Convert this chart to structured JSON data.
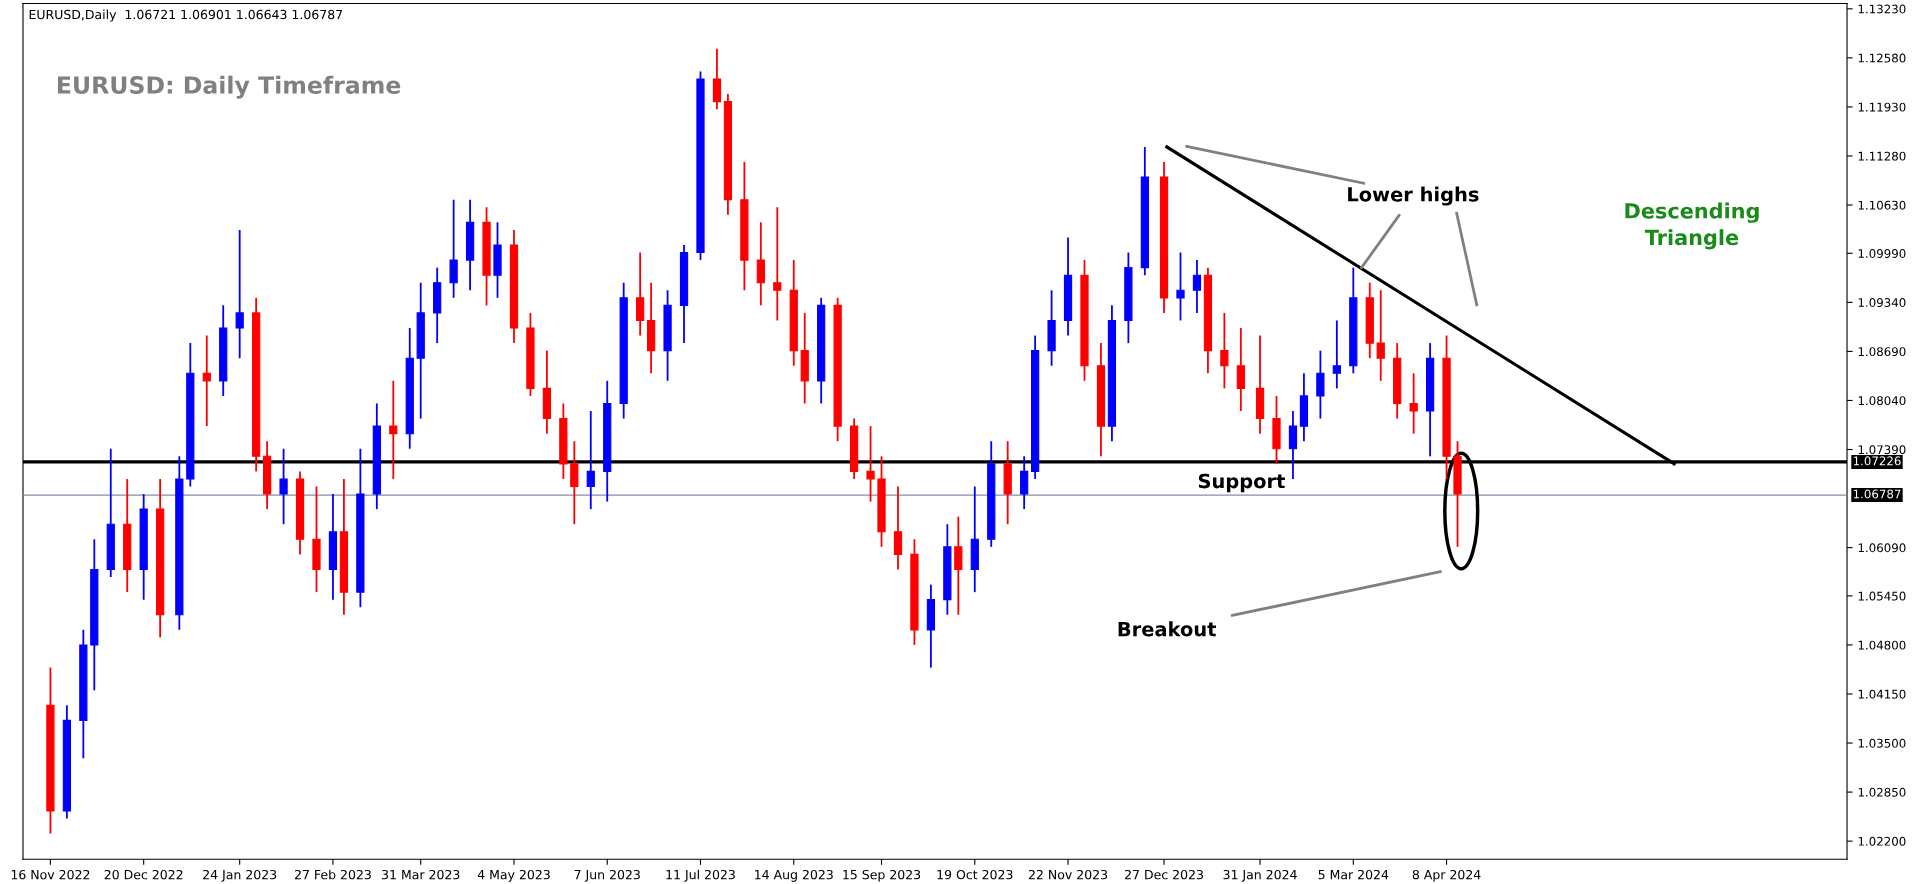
{
  "chart_data": {
    "type": "candlestick",
    "title": "EURUSD: Daily Timeframe",
    "annotations": [
      "EURUSD,Daily  1.06721 1.06901 1.06643 1.06787",
      {
        "text": "Lower highs",
        "x": "2024-03-08",
        "y": 1.098
      },
      "Descending\nTriangle",
      "Support",
      "Breakout"
    ],
    "x": [
      "2022-11-16",
      "2022-11-22",
      "2022-11-28",
      "2022-12-02",
      "2022-12-08",
      "2022-12-14",
      "2022-12-20",
      "2022-12-26",
      "2023-01-02",
      "2023-01-06",
      "2023-01-12",
      "2023-01-18",
      "2023-01-24",
      "2023-01-30",
      "2023-02-03",
      "2023-02-09",
      "2023-02-15",
      "2023-02-21",
      "2023-02-27",
      "2023-03-03",
      "2023-03-09",
      "2023-03-15",
      "2023-03-21",
      "2023-03-27",
      "2023-03-31",
      "2023-04-06",
      "2023-04-12",
      "2023-04-18",
      "2023-04-24",
      "2023-04-28",
      "2023-05-04",
      "2023-05-10",
      "2023-05-16",
      "2023-05-22",
      "2023-05-26",
      "2023-06-01",
      "2023-06-07",
      "2023-06-13",
      "2023-06-19",
      "2023-06-23",
      "2023-06-29",
      "2023-07-05",
      "2023-07-11",
      "2023-07-17",
      "2023-07-21",
      "2023-07-27",
      "2023-08-02",
      "2023-08-08",
      "2023-08-14",
      "2023-08-18",
      "2023-08-24",
      "2023-08-30",
      "2023-09-05",
      "2023-09-11",
      "2023-09-15",
      "2023-09-21",
      "2023-09-27",
      "2023-10-03",
      "2023-10-09",
      "2023-10-13",
      "2023-10-19",
      "2023-10-25",
      "2023-10-31",
      "2023-11-06",
      "2023-11-10",
      "2023-11-16",
      "2023-11-22",
      "2023-11-28",
      "2023-12-04",
      "2023-12-08",
      "2023-12-14",
      "2023-12-20",
      "2023-12-27",
      "2024-01-02",
      "2024-01-08",
      "2024-01-12",
      "2024-01-18",
      "2024-01-24",
      "2024-01-31",
      "2024-02-06",
      "2024-02-12",
      "2024-02-16",
      "2024-02-22",
      "2024-02-28",
      "2024-03-05",
      "2024-03-11",
      "2024-03-15",
      "2024-03-21",
      "2024-03-27",
      "2024-04-02",
      "2024-04-08",
      "2024-04-12"
    ],
    "ohlc": [
      [
        1.04,
        1.045,
        1.023,
        1.026
      ],
      [
        1.026,
        1.04,
        1.025,
        1.038
      ],
      [
        1.038,
        1.05,
        1.033,
        1.048
      ],
      [
        1.048,
        1.062,
        1.042,
        1.058
      ],
      [
        1.058,
        1.074,
        1.057,
        1.064
      ],
      [
        1.064,
        1.07,
        1.055,
        1.058
      ],
      [
        1.058,
        1.068,
        1.054,
        1.066
      ],
      [
        1.066,
        1.07,
        1.049,
        1.052
      ],
      [
        1.052,
        1.073,
        1.05,
        1.07
      ],
      [
        1.07,
        1.088,
        1.069,
        1.084
      ],
      [
        1.084,
        1.089,
        1.077,
        1.083
      ],
      [
        1.083,
        1.093,
        1.081,
        1.09
      ],
      [
        1.09,
        1.103,
        1.086,
        1.092
      ],
      [
        1.092,
        1.094,
        1.071,
        1.073
      ],
      [
        1.073,
        1.075,
        1.066,
        1.068
      ],
      [
        1.068,
        1.074,
        1.064,
        1.07
      ],
      [
        1.07,
        1.071,
        1.06,
        1.062
      ],
      [
        1.062,
        1.069,
        1.055,
        1.058
      ],
      [
        1.058,
        1.068,
        1.054,
        1.063
      ],
      [
        1.063,
        1.07,
        1.052,
        1.055
      ],
      [
        1.055,
        1.074,
        1.053,
        1.068
      ],
      [
        1.068,
        1.08,
        1.066,
        1.077
      ],
      [
        1.077,
        1.083,
        1.07,
        1.076
      ],
      [
        1.076,
        1.09,
        1.074,
        1.086
      ],
      [
        1.086,
        1.096,
        1.078,
        1.092
      ],
      [
        1.092,
        1.098,
        1.088,
        1.096
      ],
      [
        1.096,
        1.107,
        1.094,
        1.099
      ],
      [
        1.099,
        1.107,
        1.095,
        1.104
      ],
      [
        1.104,
        1.106,
        1.093,
        1.097
      ],
      [
        1.097,
        1.104,
        1.094,
        1.101
      ],
      [
        1.101,
        1.103,
        1.088,
        1.09
      ],
      [
        1.09,
        1.092,
        1.081,
        1.082
      ],
      [
        1.082,
        1.087,
        1.076,
        1.078
      ],
      [
        1.078,
        1.08,
        1.07,
        1.072
      ],
      [
        1.072,
        1.075,
        1.064,
        1.069
      ],
      [
        1.069,
        1.079,
        1.066,
        1.071
      ],
      [
        1.071,
        1.083,
        1.067,
        1.08
      ],
      [
        1.08,
        1.096,
        1.078,
        1.094
      ],
      [
        1.094,
        1.1,
        1.089,
        1.091
      ],
      [
        1.091,
        1.096,
        1.084,
        1.087
      ],
      [
        1.087,
        1.095,
        1.083,
        1.093
      ],
      [
        1.093,
        1.101,
        1.088,
        1.1
      ],
      [
        1.1,
        1.124,
        1.099,
        1.123
      ],
      [
        1.123,
        1.127,
        1.119,
        1.12
      ],
      [
        1.12,
        1.121,
        1.105,
        1.107
      ],
      [
        1.107,
        1.112,
        1.095,
        1.099
      ],
      [
        1.099,
        1.104,
        1.093,
        1.096
      ],
      [
        1.096,
        1.106,
        1.091,
        1.095
      ],
      [
        1.095,
        1.099,
        1.085,
        1.087
      ],
      [
        1.087,
        1.092,
        1.08,
        1.083
      ],
      [
        1.083,
        1.094,
        1.08,
        1.093
      ],
      [
        1.093,
        1.094,
        1.075,
        1.077
      ],
      [
        1.077,
        1.078,
        1.07,
        1.071
      ],
      [
        1.071,
        1.077,
        1.067,
        1.07
      ],
      [
        1.07,
        1.073,
        1.061,
        1.063
      ],
      [
        1.063,
        1.069,
        1.058,
        1.06
      ],
      [
        1.06,
        1.062,
        1.048,
        1.05
      ],
      [
        1.05,
        1.056,
        1.045,
        1.054
      ],
      [
        1.054,
        1.064,
        1.052,
        1.061
      ],
      [
        1.061,
        1.065,
        1.052,
        1.058
      ],
      [
        1.058,
        1.069,
        1.055,
        1.062
      ],
      [
        1.062,
        1.075,
        1.061,
        1.072
      ],
      [
        1.072,
        1.075,
        1.064,
        1.068
      ],
      [
        1.068,
        1.073,
        1.066,
        1.071
      ],
      [
        1.071,
        1.089,
        1.07,
        1.087
      ],
      [
        1.087,
        1.095,
        1.085,
        1.091
      ],
      [
        1.091,
        1.102,
        1.089,
        1.097
      ],
      [
        1.097,
        1.099,
        1.083,
        1.085
      ],
      [
        1.085,
        1.088,
        1.073,
        1.077
      ],
      [
        1.077,
        1.093,
        1.075,
        1.091
      ],
      [
        1.091,
        1.1,
        1.088,
        1.098
      ],
      [
        1.098,
        1.114,
        1.097,
        1.11
      ],
      [
        1.11,
        1.112,
        1.092,
        1.094
      ],
      [
        1.094,
        1.1,
        1.091,
        1.095
      ],
      [
        1.095,
        1.099,
        1.092,
        1.097
      ],
      [
        1.097,
        1.098,
        1.084,
        1.087
      ],
      [
        1.087,
        1.092,
        1.082,
        1.085
      ],
      [
        1.085,
        1.09,
        1.079,
        1.082
      ],
      [
        1.082,
        1.089,
        1.076,
        1.078
      ],
      [
        1.078,
        1.081,
        1.072,
        1.074
      ],
      [
        1.074,
        1.079,
        1.07,
        1.077
      ],
      [
        1.077,
        1.084,
        1.075,
        1.081
      ],
      [
        1.081,
        1.087,
        1.078,
        1.084
      ],
      [
        1.084,
        1.091,
        1.082,
        1.085
      ],
      [
        1.085,
        1.098,
        1.084,
        1.094
      ],
      [
        1.094,
        1.096,
        1.086,
        1.088
      ],
      [
        1.088,
        1.095,
        1.083,
        1.086
      ],
      [
        1.086,
        1.088,
        1.078,
        1.08
      ],
      [
        1.08,
        1.084,
        1.076,
        1.079
      ],
      [
        1.079,
        1.088,
        1.073,
        1.086
      ],
      [
        1.086,
        1.089,
        1.07,
        1.073
      ],
      [
        1.073,
        1.075,
        1.061,
        1.068
      ]
    ],
    "colors": [
      "#ff0000",
      "#0000ff",
      "#0000ff",
      "#0000ff",
      "#0000ff",
      "#ff0000",
      "#0000ff",
      "#ff0000",
      "#0000ff",
      "#0000ff",
      "#ff0000",
      "#0000ff",
      "#0000ff",
      "#ff0000",
      "#ff0000",
      "#0000ff",
      "#ff0000",
      "#ff0000",
      "#0000ff",
      "#ff0000",
      "#0000ff",
      "#0000ff",
      "#ff0000",
      "#0000ff",
      "#0000ff",
      "#0000ff",
      "#0000ff",
      "#0000ff",
      "#ff0000",
      "#0000ff",
      "#ff0000",
      "#ff0000",
      "#ff0000",
      "#ff0000",
      "#ff0000",
      "#0000ff",
      "#0000ff",
      "#0000ff",
      "#ff0000",
      "#ff0000",
      "#0000ff",
      "#0000ff",
      "#0000ff",
      "#ff0000",
      "#ff0000",
      "#ff0000",
      "#ff0000",
      "#ff0000",
      "#ff0000",
      "#ff0000",
      "#0000ff",
      "#ff0000",
      "#ff0000",
      "#ff0000",
      "#ff0000",
      "#ff0000",
      "#ff0000",
      "#0000ff",
      "#0000ff",
      "#ff0000",
      "#0000ff",
      "#0000ff",
      "#ff0000",
      "#0000ff",
      "#0000ff",
      "#0000ff",
      "#0000ff",
      "#ff0000",
      "#ff0000",
      "#0000ff",
      "#0000ff",
      "#0000ff",
      "#ff0000",
      "#0000ff",
      "#0000ff",
      "#ff0000",
      "#ff0000",
      "#ff0000",
      "#ff0000",
      "#ff0000",
      "#0000ff",
      "#0000ff",
      "#0000ff",
      "#0000ff",
      "#0000ff",
      "#ff0000",
      "#ff0000",
      "#ff0000",
      "#ff0000",
      "#0000ff",
      "#ff0000",
      "#ff0000"
    ],
    "series": [
      {
        "type": "line",
        "x": [
          "2023-12-28",
          "2024-06-30"
        ],
        "values": [
          1.114,
          1.072
        ],
        "color": "#000000"
      }
    ],
    "ref_lines": [
      {
        "axis": "y",
        "value": 1.07226,
        "label": "1.07226",
        "color": "#000000"
      },
      {
        "axis": "y",
        "value": 1.06787,
        "label": "1.06787",
        "color": "#8090a8"
      }
    ],
    "xlim": [
      "2022-11-06",
      "2024-09-01"
    ],
    "xticks": [
      {
        "value": "2022-11-16",
        "label": "16 Nov 2022"
      },
      {
        "value": "2022-12-20",
        "label": "20 Dec 2022"
      },
      {
        "value": "2023-01-24",
        "label": "24 Jan 2023"
      },
      {
        "value": "2023-02-27",
        "label": "27 Feb 2023"
      },
      {
        "value": "2023-03-31",
        "label": "31 Mar 2023"
      },
      {
        "value": "2023-05-04",
        "label": "4 May 2023"
      },
      {
        "value": "2023-06-07",
        "label": "7 Jun 2023"
      },
      {
        "value": "2023-07-11",
        "label": "11 Jul 2023"
      },
      {
        "value": "2023-08-14",
        "label": "14 Aug 2023"
      },
      {
        "value": "2023-09-15",
        "label": "15 Sep 2023"
      },
      {
        "value": "2023-10-19",
        "label": "19 Oct 2023"
      },
      {
        "value": "2023-11-22",
        "label": "22 Nov 2023"
      },
      {
        "value": "2023-12-27",
        "label": "27 Dec 2023"
      },
      {
        "value": "2024-01-31",
        "label": "31 Jan 2024"
      },
      {
        "value": "2024-03-05",
        "label": "5 Mar 2024"
      },
      {
        "value": "2024-04-08",
        "label": "8 Apr 2024"
      }
    ],
    "ylim": [
      1.0196,
      1.133
    ],
    "yticks": [
      {
        "value": 1.022,
        "label": "1.02200"
      },
      {
        "value": 1.0285,
        "label": "1.02850"
      },
      {
        "value": 1.035,
        "label": "1.03500"
      },
      {
        "value": 1.0415,
        "label": "1.04150"
      },
      {
        "value": 1.048,
        "label": "1.04800"
      },
      {
        "value": 1.0545,
        "label": "1.05450"
      },
      {
        "value": 1.0609,
        "label": "1.06090"
      },
      {
        "value": 1.0739,
        "label": "1.07390"
      },
      {
        "value": 1.0804,
        "label": "1.08040"
      },
      {
        "value": 1.0869,
        "label": "1.08690"
      },
      {
        "value": 1.0934,
        "label": "1.09340"
      },
      {
        "value": 1.0999,
        "label": "1.09990"
      },
      {
        "value": 1.1063,
        "label": "1.10630"
      },
      {
        "value": 1.1128,
        "label": "1.11280"
      },
      {
        "value": 1.1193,
        "label": "1.11930"
      },
      {
        "value": 1.1258,
        "label": "1.12580"
      },
      {
        "value": 1.1323,
        "label": "1.13230"
      }
    ],
    "grid": false
  }
}
